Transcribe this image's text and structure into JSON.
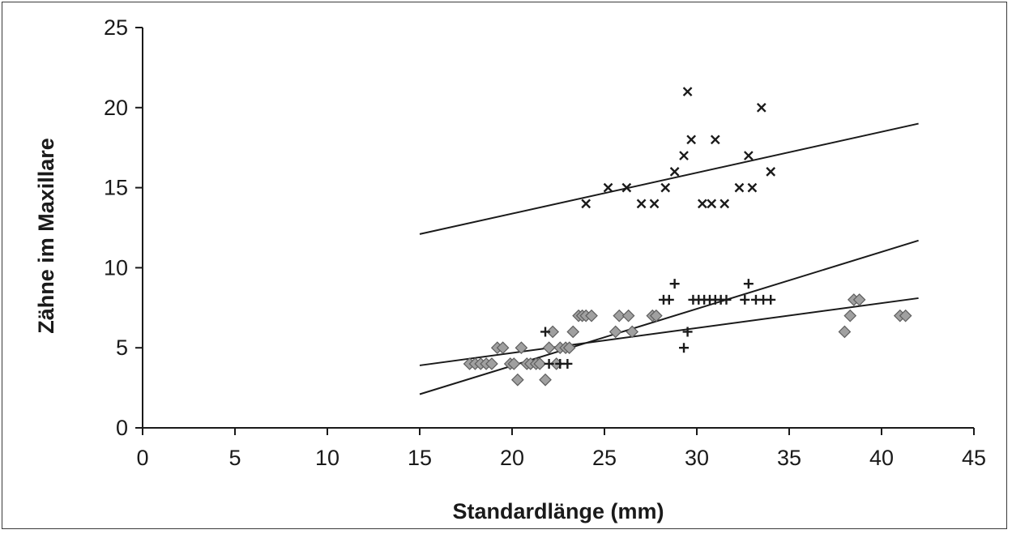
{
  "chart_data": {
    "type": "scatter",
    "title": "",
    "xlabel": "Standardlänge (mm)",
    "ylabel": "Zähne im Maxillare",
    "xlim": [
      0,
      45
    ],
    "ylim": [
      0,
      25
    ],
    "xticks": [
      0,
      5,
      10,
      15,
      20,
      25,
      30,
      35,
      40,
      45
    ],
    "yticks": [
      0,
      5,
      10,
      15,
      20,
      25
    ],
    "grid": false,
    "series": [
      {
        "marker": "x",
        "color": "#1a1a1a",
        "points": [
          [
            24.0,
            14
          ],
          [
            25.2,
            15
          ],
          [
            26.2,
            15
          ],
          [
            27.0,
            14
          ],
          [
            27.7,
            14
          ],
          [
            28.3,
            15
          ],
          [
            28.8,
            16
          ],
          [
            29.3,
            17
          ],
          [
            29.5,
            21
          ],
          [
            29.7,
            18
          ],
          [
            30.3,
            14
          ],
          [
            30.8,
            14
          ],
          [
            31.0,
            18
          ],
          [
            31.5,
            14
          ],
          [
            32.3,
            15
          ],
          [
            32.8,
            17
          ],
          [
            33.0,
            15
          ],
          [
            33.5,
            20
          ],
          [
            34.0,
            16
          ]
        ],
        "trendline": [
          [
            15,
            12.1
          ],
          [
            42,
            19.0
          ]
        ]
      },
      {
        "marker": "+",
        "color": "#1a1a1a",
        "points": [
          [
            21.8,
            6
          ],
          [
            22.0,
            4
          ],
          [
            22.6,
            4
          ],
          [
            23.0,
            4
          ],
          [
            28.2,
            8
          ],
          [
            28.5,
            8
          ],
          [
            28.8,
            9
          ],
          [
            29.3,
            5
          ],
          [
            29.5,
            6
          ],
          [
            29.8,
            8
          ],
          [
            30.1,
            8
          ],
          [
            30.4,
            8
          ],
          [
            30.7,
            8
          ],
          [
            31.0,
            8
          ],
          [
            31.3,
            8
          ],
          [
            31.6,
            8
          ],
          [
            32.6,
            8
          ],
          [
            32.8,
            9
          ],
          [
            33.2,
            8
          ],
          [
            33.6,
            8
          ],
          [
            34.0,
            8
          ]
        ],
        "trendline": [
          [
            15,
            2.1
          ],
          [
            42,
            11.7
          ]
        ]
      },
      {
        "marker": "diamond",
        "color": "#a0a0a0",
        "points": [
          [
            17.7,
            4
          ],
          [
            18.0,
            4
          ],
          [
            18.3,
            4
          ],
          [
            18.6,
            4
          ],
          [
            18.9,
            4
          ],
          [
            19.2,
            5
          ],
          [
            19.5,
            5
          ],
          [
            19.9,
            4
          ],
          [
            20.1,
            4
          ],
          [
            20.3,
            3
          ],
          [
            20.5,
            5
          ],
          [
            20.8,
            4
          ],
          [
            21.0,
            4
          ],
          [
            21.3,
            4
          ],
          [
            21.5,
            4
          ],
          [
            21.8,
            3
          ],
          [
            22.0,
            5
          ],
          [
            22.2,
            6
          ],
          [
            22.4,
            4
          ],
          [
            22.6,
            5
          ],
          [
            22.9,
            5
          ],
          [
            23.1,
            5
          ],
          [
            23.3,
            6
          ],
          [
            23.6,
            7
          ],
          [
            23.8,
            7
          ],
          [
            24.0,
            7
          ],
          [
            24.3,
            7
          ],
          [
            25.6,
            6
          ],
          [
            25.8,
            7
          ],
          [
            26.3,
            7
          ],
          [
            26.5,
            6
          ],
          [
            27.6,
            7
          ],
          [
            27.8,
            7
          ],
          [
            38.0,
            6
          ],
          [
            38.3,
            7
          ],
          [
            38.5,
            8
          ],
          [
            38.8,
            8
          ],
          [
            41.0,
            7
          ],
          [
            41.3,
            7
          ]
        ],
        "trendline": [
          [
            15,
            3.9
          ],
          [
            42,
            8.1
          ]
        ]
      }
    ]
  }
}
